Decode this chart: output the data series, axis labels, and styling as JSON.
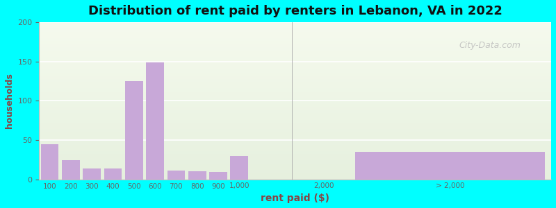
{
  "title": "Distribution of rent paid by renters in Lebanon, VA in 2022",
  "xlabel": "rent paid ($)",
  "ylabel": "households",
  "bar_color": "#c8a8d8",
  "background_outer": "#00ffff",
  "background_inner": "#eef5e8",
  "categories": [
    "100",
    "200",
    "300",
    "400",
    "500",
    "600",
    "700",
    "800",
    "900",
    "1,000",
    "2,000",
    "> 2,000"
  ],
  "values": [
    45,
    24,
    14,
    14,
    125,
    149,
    11,
    10,
    9,
    30,
    0,
    35
  ],
  "ylim": [
    0,
    200
  ],
  "yticks": [
    0,
    50,
    100,
    150,
    200
  ],
  "watermark": "City-Data.com"
}
